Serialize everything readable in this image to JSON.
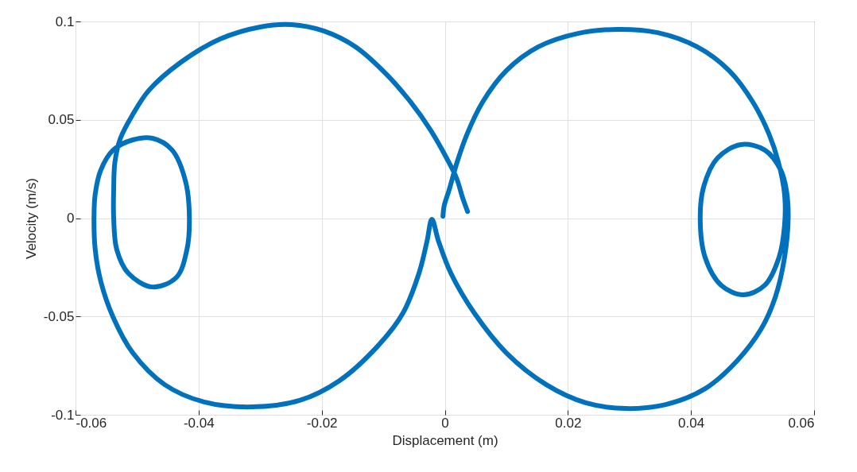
{
  "chart_data": {
    "type": "line",
    "xlabel": "Displacement (m)",
    "ylabel": "Velocity (m/s)",
    "x": [
      0.0037,
      0.0029,
      0.0019,
      0.0003,
      -0.0023,
      -0.0055,
      -0.0094,
      -0.0145,
      -0.0197,
      -0.0249,
      -0.03,
      -0.0365,
      -0.043,
      -0.0481,
      -0.0507,
      -0.0527,
      -0.0536,
      -0.0538,
      -0.0538,
      -0.0533,
      -0.0514,
      -0.0475,
      -0.0436,
      -0.0419,
      -0.0415,
      -0.0421,
      -0.0443,
      -0.0475,
      -0.0507,
      -0.0539,
      -0.0559,
      -0.0568,
      -0.057,
      -0.0568,
      -0.0559,
      -0.0539,
      -0.0507,
      -0.0455,
      -0.0391,
      -0.0313,
      -0.0236,
      -0.0171,
      -0.0107,
      -0.0068,
      -0.0042,
      -0.0029,
      -0.0021,
      -0.001,
      0.001,
      0.0048,
      0.01,
      0.0165,
      0.0229,
      0.0294,
      0.0359,
      0.0423,
      0.0475,
      0.0514,
      0.0537,
      0.0552,
      0.0558,
      0.0555,
      0.0546,
      0.052,
      0.0481,
      0.0443,
      0.0421,
      0.0415,
      0.0423,
      0.0449,
      0.0485,
      0.052,
      0.0543,
      0.0552,
      0.0552,
      0.0542,
      0.0527,
      0.0501,
      0.0462,
      0.041,
      0.0346,
      0.0281,
      0.0216,
      0.0152,
      0.01,
      0.0061,
      0.0036,
      0.002,
      0.0007,
      -0.0001,
      -0.0003
    ],
    "series": [
      {
        "color": "#0072bd",
        "values": [
          0.0034,
          0.0103,
          0.0204,
          0.0305,
          0.0447,
          0.0588,
          0.0729,
          0.0871,
          0.0952,
          0.0984,
          0.0972,
          0.0911,
          0.079,
          0.0649,
          0.0527,
          0.0406,
          0.0285,
          0.0143,
          0.0002,
          -0.016,
          -0.0281,
          -0.035,
          -0.0301,
          -0.016,
          0.0002,
          0.0184,
          0.0346,
          0.0406,
          0.0398,
          0.0346,
          0.0244,
          0.0123,
          0.0002,
          -0.016,
          -0.0321,
          -0.0503,
          -0.0685,
          -0.0847,
          -0.0935,
          -0.096,
          -0.0927,
          -0.0826,
          -0.0644,
          -0.0483,
          -0.0281,
          -0.0119,
          -0.0006,
          -0.0119,
          -0.0281,
          -0.0483,
          -0.0685,
          -0.0847,
          -0.0939,
          -0.0968,
          -0.0948,
          -0.0867,
          -0.0725,
          -0.0564,
          -0.0402,
          -0.02,
          0.0002,
          0.0143,
          0.0244,
          0.0346,
          0.0374,
          0.0305,
          0.0164,
          0.0002,
          -0.02,
          -0.0341,
          -0.039,
          -0.0341,
          -0.02,
          -0.0038,
          0.0123,
          0.0285,
          0.0426,
          0.0588,
          0.075,
          0.0871,
          0.0943,
          0.096,
          0.0939,
          0.0871,
          0.075,
          0.0588,
          0.0426,
          0.0285,
          0.0143,
          0.0063,
          0.001
        ]
      }
    ],
    "xlim": [
      -0.06,
      0.06
    ],
    "ylim": [
      -0.1,
      0.1
    ],
    "xticks": [
      -0.06,
      -0.04,
      -0.02,
      0,
      0.02,
      0.04,
      0.06
    ],
    "yticks": [
      -0.1,
      -0.05,
      0,
      0.05,
      0.1
    ],
    "grid": true,
    "line_style": "solid"
  }
}
